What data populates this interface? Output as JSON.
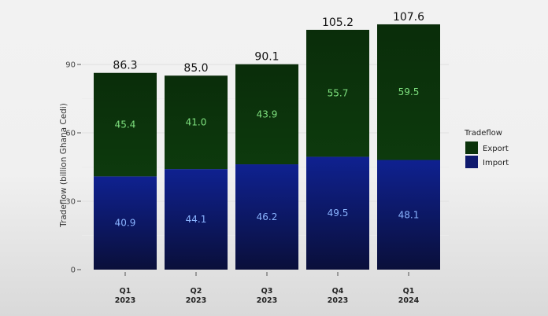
{
  "chart_data": {
    "type": "bar",
    "stacked": true,
    "categories": [
      "Q1\n2023",
      "Q2\n2023",
      "Q3\n2023",
      "Q4\n2023",
      "Q1\n2024"
    ],
    "series": [
      {
        "name": "Import",
        "values": [
          40.9,
          44.1,
          46.2,
          49.5,
          48.1
        ],
        "color": "#0f1a6e",
        "label_color": "#8ab4ff"
      },
      {
        "name": "Export",
        "values": [
          45.4,
          41.0,
          43.9,
          55.7,
          59.5
        ],
        "color": "#0b330b",
        "label_color": "#7ee07e"
      }
    ],
    "totals": [
      86.3,
      85.0,
      90.1,
      105.2,
      107.6
    ],
    "ylabel": "Tradeflow (billion Ghana Cedi)",
    "ylim": [
      0,
      108
    ],
    "yticks": [
      0,
      30,
      60,
      90
    ],
    "grid": true,
    "legend": {
      "title": "Tradeflow",
      "placement": "right",
      "items": [
        "Export",
        "Import"
      ]
    }
  }
}
